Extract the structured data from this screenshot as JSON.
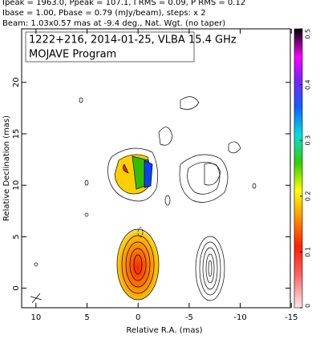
{
  "chart_data": {
    "type": "contour",
    "header": [
      "Ipeak = 1963.0, Ppeak = 107.1, I RMS = 0.09, P RMS = 0.12",
      "Ibase = 1.00, Pbase = 0.79 (mJy/beam), steps: x 2",
      "Beam: 1.03x0.57 mas at -9.4 deg., Nat. Wgt. (no taper)"
    ],
    "title": "1222+216, 2014-01-25, VLBA 15.4 GHz",
    "subtitle": "MOJAVE Program",
    "x_label": "Relative R.A. (mas)",
    "y_label": "Relative Declination (mas)",
    "xlim": [
      11.4,
      -14.9
    ],
    "xticks": [
      10,
      5,
      0,
      -5,
      -10,
      -15
    ],
    "ylim": [
      -1.9,
      25.2
    ],
    "yticks": [
      0,
      5,
      10,
      15,
      20
    ],
    "colorbar": {
      "lim": [
        0,
        0.5
      ],
      "ticks": [
        0,
        0.1,
        0.2,
        0.3,
        0.4,
        0.5
      ]
    }
  }
}
